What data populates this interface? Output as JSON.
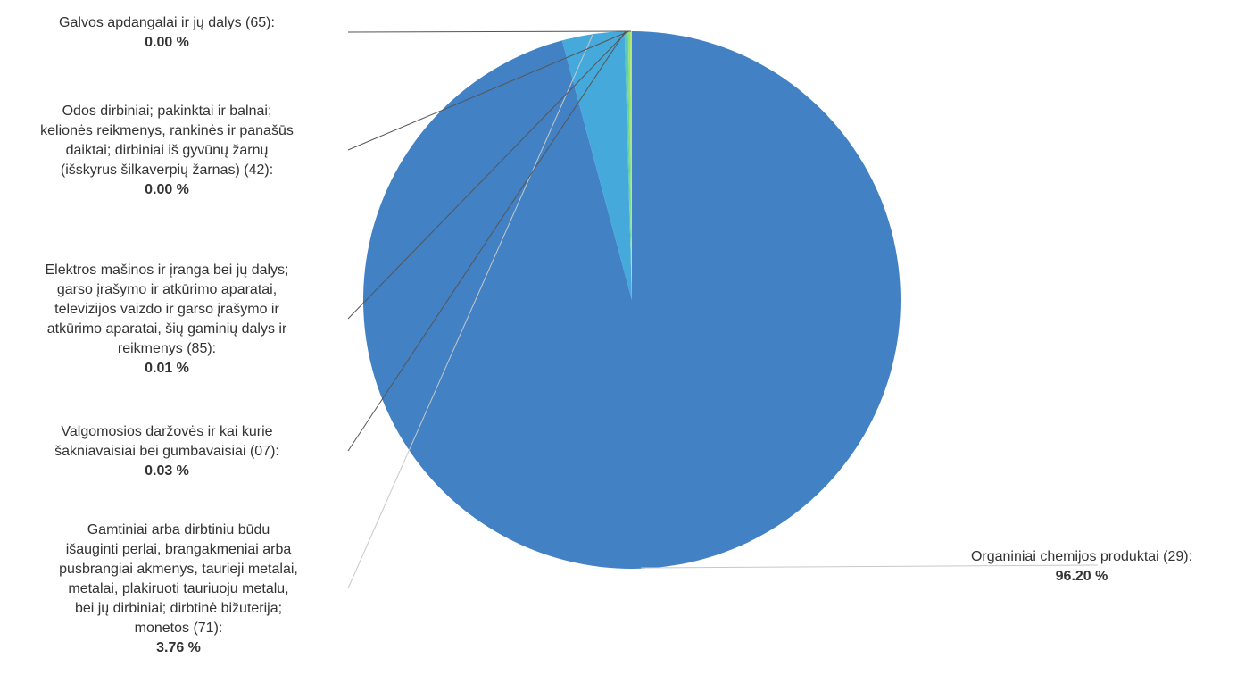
{
  "chart_data": {
    "type": "pie",
    "title": "",
    "slices": [
      {
        "label": "Organiniai chemijos produktai (29):",
        "value": 96.2,
        "value_text": "96.20 %",
        "color": "#4281c3"
      },
      {
        "label": "Gamtiniai arba dirbtiniu būdu išauginti perlai, brangakmeniai arba pusbrangiai akmenys, taurieji metalai, metalai, plakiruoti tauriuoju metalu, bei jų dirbiniai; dirbtinė bižuterija; monetos (71):",
        "value": 3.76,
        "value_text": "3.76 %",
        "color": "#45a9dc"
      },
      {
        "label": "Valgomosios daržovės ir kai kurie šakniavaisiai  bei gumbavaisiai (07):",
        "value": 0.03,
        "value_text": "0.03 %",
        "color": "#5bc7b8"
      },
      {
        "label": "Elektros mašinos ir įranga bei jų dalys; garso įrašymo ir atkūrimo aparatai, televizijos vaizdo ir garso įrašymo ir atkūrimo aparatai, šių gaminių dalys ir reikmenys (85):",
        "value": 0.01,
        "value_text": "0.01 %",
        "color": "#6fd486"
      },
      {
        "label": "Odos dirbiniai; pakinktai ir balnai; kelionės reikmenys, rankinės ir panašūs daiktai; dirbiniai iš gyvūnų žarnų (išskyrus šilkaverpių žarnas) (42):",
        "value": 0.0,
        "value_text": "0.00 %",
        "color": "#8ee07a"
      },
      {
        "label": "Galvos apdangalai ir jų dalys (65):",
        "value": 0.0,
        "value_text": "0.00 %",
        "color": "#b2e86f"
      }
    ],
    "legend": "none",
    "labels": "outside-with-leader-lines"
  }
}
